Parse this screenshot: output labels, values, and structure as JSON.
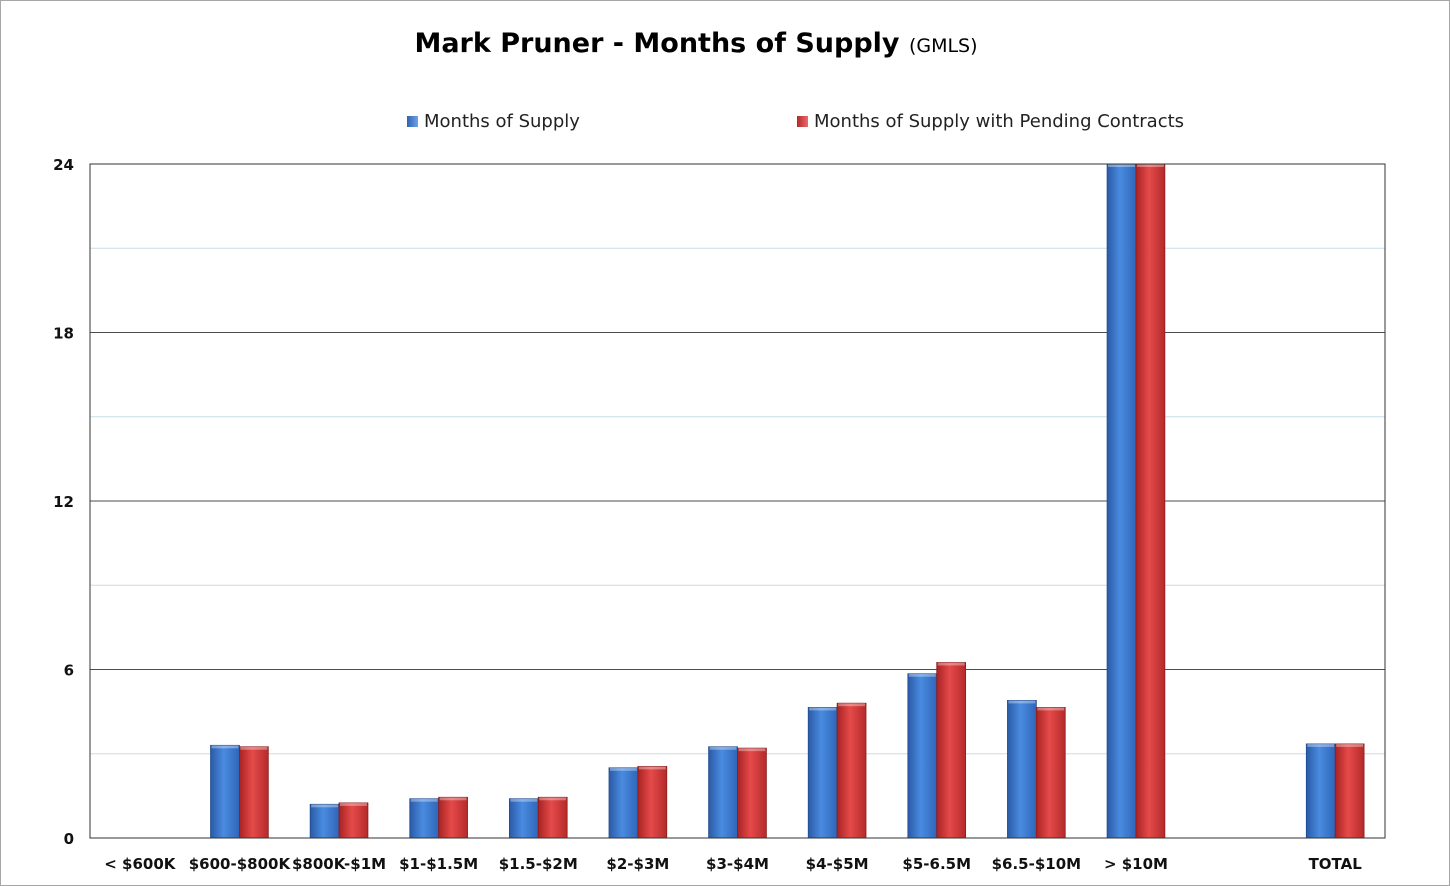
{
  "chart_data": {
    "type": "bar",
    "title": "Mark Pruner - Months of Supply",
    "subtitle": "(GMLS)",
    "xlabel": "",
    "ylabel": "",
    "ylim": [
      0,
      24
    ],
    "yticks": [
      "0",
      "6",
      "12",
      "18",
      "24"
    ],
    "grid": true,
    "legend_position": "top",
    "categories": [
      "< $600K",
      "$600-$800K",
      "$800K-$1M",
      "$1-$1.5M",
      "$1.5-$2M",
      "$2-$3M",
      "$3-$4M",
      "$4-$5M",
      "$5-6.5M",
      "$6.5-$10M",
      "> $10M",
      "",
      "TOTAL"
    ],
    "series": [
      {
        "name": "Months of Supply",
        "color": "#3f7fd3",
        "values": [
          0,
          3.3,
          1.2,
          1.4,
          1.4,
          2.5,
          3.25,
          4.65,
          5.85,
          4.9,
          24,
          null,
          3.35
        ]
      },
      {
        "name": "Months of Supply with Pending Contracts",
        "color": "#d93c3c",
        "values": [
          0,
          3.25,
          1.25,
          1.45,
          1.45,
          2.55,
          3.2,
          4.8,
          6.25,
          4.65,
          24,
          null,
          3.35
        ]
      }
    ]
  }
}
